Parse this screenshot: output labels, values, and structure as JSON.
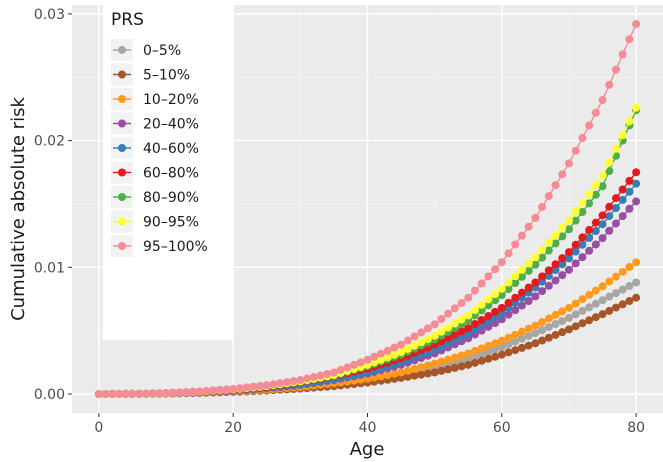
{
  "chart_data": {
    "type": "line",
    "xlabel": "Age",
    "ylabel": "Cumulative absolute risk",
    "xlim": [
      -4,
      84
    ],
    "ylim": [
      -0.0015,
      0.0307
    ],
    "x_ticks": [
      0,
      20,
      40,
      60,
      80
    ],
    "x_tick_labels": [
      "0",
      "20",
      "40",
      "60",
      "80"
    ],
    "y_ticks": [
      0.0,
      0.01,
      0.02,
      0.03
    ],
    "y_tick_labels": [
      "0.00",
      "0.01",
      "0.02",
      "0.03"
    ],
    "grid": true,
    "legend": {
      "title": "PRS",
      "placement": "top-left"
    },
    "x": [
      0,
      5,
      10,
      15,
      20,
      25,
      30,
      35,
      40,
      45,
      50,
      55,
      60,
      65,
      70,
      75,
      80
    ],
    "series": [
      {
        "name": "0–5%",
        "color": "#a6a6a6",
        "values": [
          0,
          1e-05,
          4e-05,
          0.0001,
          0.0002,
          0.00032,
          0.0005,
          0.00075,
          0.0011,
          0.00155,
          0.0021,
          0.0028,
          0.0037,
          0.0048,
          0.006,
          0.0074,
          0.0088
        ]
      },
      {
        "name": "5–10%",
        "color": "#a65628",
        "values": [
          0,
          1e-05,
          3e-05,
          8e-05,
          0.00016,
          0.00027,
          0.00042,
          0.00062,
          0.0009,
          0.00127,
          0.0017,
          0.0023,
          0.0031,
          0.004,
          0.0051,
          0.0063,
          0.0076
        ]
      },
      {
        "name": "10–20%",
        "color": "#ff9a1f",
        "values": [
          0,
          1e-05,
          4e-05,
          0.0001,
          0.0002,
          0.00035,
          0.00055,
          0.00085,
          0.0012,
          0.0017,
          0.0024,
          0.0032,
          0.0042,
          0.0054,
          0.0068,
          0.0085,
          0.0104
        ]
      },
      {
        "name": "20–40%",
        "color": "#984ea3",
        "values": [
          0,
          1e-05,
          5e-05,
          0.00012,
          0.00025,
          0.00045,
          0.0007,
          0.0011,
          0.0016,
          0.0023,
          0.0032,
          0.0044,
          0.0059,
          0.0077,
          0.0098,
          0.0123,
          0.0152
        ]
      },
      {
        "name": "40–60%",
        "color": "#377eb8",
        "values": [
          0,
          1e-05,
          5e-05,
          0.00013,
          0.00026,
          0.00047,
          0.00075,
          0.00115,
          0.0017,
          0.0025,
          0.0035,
          0.0048,
          0.0064,
          0.0084,
          0.0107,
          0.0134,
          0.0166
        ]
      },
      {
        "name": "60–80%",
        "color": "#e41a1c",
        "values": [
          0,
          2e-05,
          6e-05,
          0.00015,
          0.0003,
          0.00055,
          0.0009,
          0.0014,
          0.002,
          0.0028,
          0.0039,
          0.0052,
          0.0068,
          0.0088,
          0.0112,
          0.0141,
          0.0175
        ]
      },
      {
        "name": "80–90%",
        "color": "#4daf4a",
        "values": [
          0,
          2e-05,
          7e-05,
          0.00018,
          0.00035,
          0.0006,
          0.00095,
          0.00145,
          0.0022,
          0.0031,
          0.0043,
          0.0058,
          0.0078,
          0.0102,
          0.013,
          0.0164,
          0.0224
        ]
      },
      {
        "name": "90–95%",
        "color": "#ffff33",
        "values": [
          0,
          2e-05,
          7e-05,
          0.00018,
          0.00036,
          0.00062,
          0.001,
          0.0015,
          0.0023,
          0.0033,
          0.0046,
          0.0062,
          0.0083,
          0.0108,
          0.0137,
          0.0172,
          0.0226
        ]
      },
      {
        "name": "95–100%",
        "color": "#f48b95",
        "values": [
          0,
          2e-05,
          8e-05,
          0.00021,
          0.0004,
          0.0007,
          0.0011,
          0.0017,
          0.0027,
          0.0039,
          0.0055,
          0.0076,
          0.0104,
          0.0139,
          0.0182,
          0.0232,
          0.0292
        ]
      }
    ]
  }
}
